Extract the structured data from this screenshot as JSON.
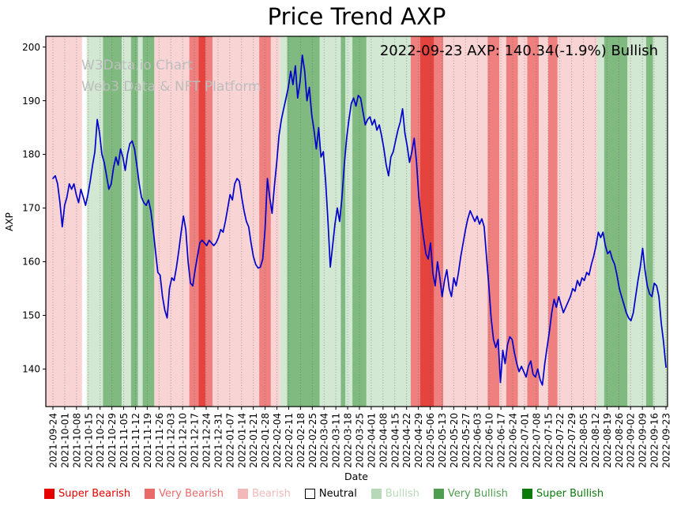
{
  "title": "Price Trend AXP",
  "watermark": {
    "line1": "W3Data.io Chart",
    "line2": "Web3 Data & NFT Platform"
  },
  "annotation": "2022-09-23 AXP: 140.34(-1.9%) Bullish",
  "chart_data": {
    "type": "line",
    "title": "Price Trend AXP",
    "xlabel": "Date",
    "ylabel": "AXP",
    "ylim": [
      133,
      202
    ],
    "yticks": [
      140,
      150,
      160,
      170,
      180,
      190,
      200
    ],
    "grid": "vertical-dotted",
    "legend_position": "bottom",
    "latest": {
      "date": "2022-09-23",
      "symbol": "AXP",
      "price": 140.34,
      "change_pct": -1.9,
      "sentiment": "Bullish"
    },
    "x_tick_labels": [
      "2021-09-24",
      "2021-10-01",
      "2021-10-08",
      "2021-10-15",
      "2021-10-22",
      "2021-10-29",
      "2021-11-05",
      "2021-11-12",
      "2021-11-19",
      "2021-11-26",
      "2021-12-03",
      "2021-12-10",
      "2021-12-17",
      "2021-12-24",
      "2021-12-31",
      "2022-01-07",
      "2022-01-14",
      "2022-01-21",
      "2022-01-28",
      "2022-02-04",
      "2022-02-11",
      "2022-02-18",
      "2022-02-25",
      "2022-03-04",
      "2022-03-11",
      "2022-03-18",
      "2022-03-25",
      "2022-04-01",
      "2022-04-08",
      "2022-04-15",
      "2022-04-22",
      "2022-04-29",
      "2022-05-06",
      "2022-05-13",
      "2022-05-20",
      "2022-05-27",
      "2022-06-03",
      "2022-06-10",
      "2022-06-17",
      "2022-06-24",
      "2022-07-01",
      "2022-07-08",
      "2022-07-15",
      "2022-07-22",
      "2022-07-29",
      "2022-08-05",
      "2022-08-12",
      "2022-08-19",
      "2022-08-26",
      "2022-09-02",
      "2022-09-09",
      "2022-09-16",
      "2022-09-23"
    ],
    "series": [
      {
        "name": "AXP",
        "color": "#0000cd",
        "values": [
          175.5,
          176,
          174.5,
          171,
          166.5,
          170.5,
          172,
          174.5,
          173.5,
          174.5,
          172.5,
          171,
          173.5,
          172,
          170.5,
          172.5,
          175,
          178,
          180.5,
          186.5,
          184,
          180,
          178.5,
          176,
          173.5,
          174.5,
          177.5,
          179.5,
          178,
          181,
          179.5,
          177,
          180,
          182,
          182.5,
          181,
          178,
          174.5,
          172,
          171,
          170.5,
          171.5,
          169.5,
          166,
          162,
          158,
          157.5,
          153.5,
          151,
          149.5,
          155,
          157,
          156.5,
          159,
          162,
          165.5,
          168.5,
          166,
          160,
          156,
          155.5,
          158.5,
          161,
          163.5,
          164,
          163.5,
          163,
          164,
          163.5,
          163,
          163.5,
          164.5,
          166,
          165.5,
          167.5,
          170,
          172.5,
          171.5,
          174.5,
          175.5,
          175,
          172,
          169.5,
          167.5,
          166.5,
          163.5,
          161,
          159.5,
          158.8,
          159,
          160.5,
          166,
          175.5,
          172,
          169,
          174,
          178.5,
          183.5,
          186.5,
          188.5,
          190.5,
          192.5,
          195.5,
          193,
          196.5,
          190.5,
          193.5,
          198.5,
          195.5,
          190,
          192.5,
          187.5,
          184.5,
          181,
          185,
          179.5,
          180.5,
          175,
          167.5,
          159,
          163,
          167,
          170,
          167.5,
          172,
          178,
          183,
          186.5,
          189.5,
          190.5,
          189,
          191,
          190.5,
          188,
          185.5,
          186.5,
          187,
          185.5,
          186.5,
          184.5,
          185.5,
          183.5,
          181,
          178,
          176,
          179.5,
          180.5,
          182.5,
          184.5,
          186,
          188.5,
          184,
          181.5,
          178.5,
          180.5,
          183,
          178.5,
          172,
          168,
          164.5,
          161.5,
          160.5,
          163.5,
          158,
          155.5,
          160,
          157,
          153.5,
          156.5,
          158.5,
          155,
          153.5,
          157,
          155.5,
          158,
          161,
          163.5,
          166,
          168,
          169.5,
          168.5,
          167.5,
          168.5,
          167,
          168,
          166.5,
          161,
          155.5,
          149.5,
          145.5,
          144,
          145.5,
          137.5,
          143.5,
          141,
          144.5,
          146,
          145.5,
          143,
          141,
          139.5,
          140.5,
          139.5,
          138.5,
          140.5,
          141.5,
          139,
          138.5,
          140,
          138,
          137,
          141,
          144,
          147,
          150.5,
          153,
          151.5,
          153.5,
          152,
          150.5,
          151.5,
          152.5,
          153.5,
          155,
          154.5,
          156.5,
          155.5,
          157,
          156.5,
          158,
          157.5,
          159.5,
          161,
          163,
          165.5,
          164.5,
          165.5,
          163,
          161.5,
          162,
          160.5,
          159.5,
          157.5,
          155,
          153.5,
          152,
          150.5,
          149.5,
          149,
          150.5,
          153.5,
          156.5,
          159,
          162.5,
          158.5,
          155.5,
          154,
          153.5,
          156,
          155.5,
          153.5,
          148.5,
          145,
          140.34
        ]
      }
    ],
    "band_categories": {
      "SB": {
        "label": "Super Bearish",
        "band_color": "#e5433e",
        "legend_color": "#e60000",
        "text_color": "#e60000"
      },
      "VB": {
        "label": "Very Bearish",
        "band_color": "#ef8080",
        "legend_color": "#e96a6a",
        "text_color": "#e96a6a"
      },
      "B": {
        "label": "Bearish",
        "band_color": "#f9d4d4",
        "legend_color": "#f3b9b9",
        "text_color": "#f3b9b9"
      },
      "N": {
        "label": "Neutral",
        "band_color": "#ffffff",
        "legend_color": "#ffffff",
        "text_color": "#000000"
      },
      "BU": {
        "label": "Bullish",
        "band_color": "#d2e8d2",
        "legend_color": "#b7d9b7",
        "text_color": "#b7d9b7"
      },
      "VBU": {
        "label": "Very Bullish",
        "band_color": "#80ba80",
        "legend_color": "#4f9e4f",
        "text_color": "#4f9e4f"
      },
      "SBU": {
        "label": "Super Bullish",
        "band_color": "#2f8f2f",
        "legend_color": "#0a7a0a",
        "text_color": "#0a7a0a"
      }
    },
    "sentiment_ranges": [
      [
        0,
        13,
        "B"
      ],
      [
        13,
        15,
        "N"
      ],
      [
        15,
        22,
        "BU"
      ],
      [
        22,
        30,
        "VBU"
      ],
      [
        30,
        34,
        "BU"
      ],
      [
        34,
        37,
        "VBU"
      ],
      [
        37,
        39,
        "BU"
      ],
      [
        39,
        44,
        "VBU"
      ],
      [
        44,
        59,
        "B"
      ],
      [
        59,
        63,
        "VB"
      ],
      [
        63,
        66,
        "SB"
      ],
      [
        66,
        69,
        "VB"
      ],
      [
        69,
        89,
        "B"
      ],
      [
        89,
        94,
        "VB"
      ],
      [
        94,
        98,
        "B"
      ],
      [
        98,
        101,
        "BU"
      ],
      [
        101,
        115,
        "VBU"
      ],
      [
        115,
        124,
        "BU"
      ],
      [
        124,
        126,
        "VBU"
      ],
      [
        126,
        129,
        "BU"
      ],
      [
        129,
        135,
        "VBU"
      ],
      [
        135,
        154,
        "BU"
      ],
      [
        154,
        158,
        "VB"
      ],
      [
        158,
        164,
        "SB"
      ],
      [
        164,
        168,
        "VB"
      ],
      [
        168,
        187,
        "B"
      ],
      [
        187,
        192,
        "VB"
      ],
      [
        192,
        195,
        "B"
      ],
      [
        195,
        200,
        "VB"
      ],
      [
        200,
        204,
        "B"
      ],
      [
        204,
        209,
        "VB"
      ],
      [
        209,
        213,
        "B"
      ],
      [
        213,
        217,
        "VB"
      ],
      [
        217,
        234,
        "B"
      ],
      [
        234,
        237,
        "BU"
      ],
      [
        237,
        247,
        "VBU"
      ],
      [
        247,
        255,
        "BU"
      ],
      [
        255,
        258,
        "VBU"
      ],
      [
        258,
        264,
        "BU"
      ]
    ],
    "legend": [
      {
        "key": "SB",
        "label": "Super Bearish"
      },
      {
        "key": "VB",
        "label": "Very Bearish"
      },
      {
        "key": "B",
        "label": "Bearish"
      },
      {
        "key": "N",
        "label": "Neutral"
      },
      {
        "key": "BU",
        "label": "Bullish"
      },
      {
        "key": "VBU",
        "label": "Very Bullish"
      },
      {
        "key": "SBU",
        "label": "Super Bullish"
      }
    ]
  }
}
